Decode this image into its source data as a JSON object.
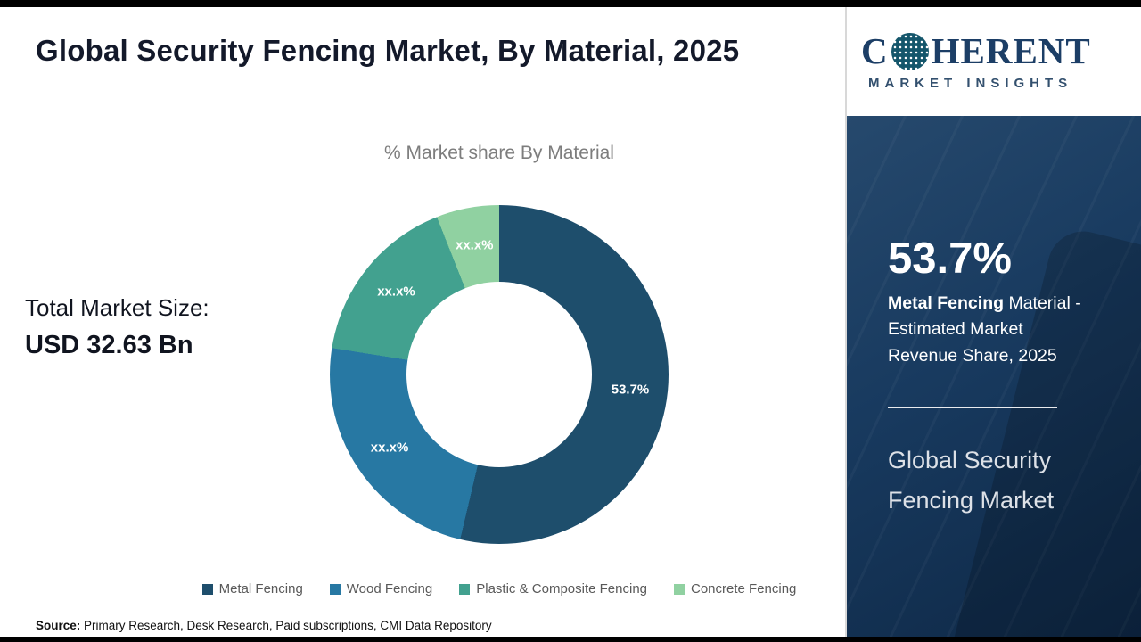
{
  "page": {
    "title": "Global Security Fencing Market, By Material, 2025",
    "total_label": "Total Market Size:",
    "total_value": "USD 32.63 Bn",
    "source_label": "Source:",
    "source_text": " Primary Research, Desk Research, Paid subscriptions, CMI Data Repository"
  },
  "logo": {
    "name_first": "C",
    "name_rest": "HERENT",
    "tagline": "MARKET INSIGHTS"
  },
  "sidebar": {
    "stat_value": "53.7%",
    "desc_bold": "Metal Fencing",
    "desc_rest": " Material - Estimated Market Revenue Share, 2025",
    "market_name": "Global Security Fencing Market"
  },
  "chart_data": {
    "type": "pie",
    "subtype": "donut",
    "title": "% Market share By Material",
    "categories": [
      "Metal Fencing",
      "Wood Fencing",
      "Plastic & Composite Fencing",
      "Concrete Fencing"
    ],
    "values": [
      53.7,
      23.8,
      16.5,
      6.0
    ],
    "slice_labels": [
      "53.7%",
      "xx.x%",
      "xx.x%",
      "xx.x%"
    ],
    "colors": [
      "#1e4e6c",
      "#2778a3",
      "#42a18f",
      "#90d1a1"
    ],
    "start_angle_deg": 0,
    "direction": "clockwise",
    "hole_ratio": 0.55,
    "legend_position": "bottom",
    "masked_values_note": "xx.x%"
  }
}
